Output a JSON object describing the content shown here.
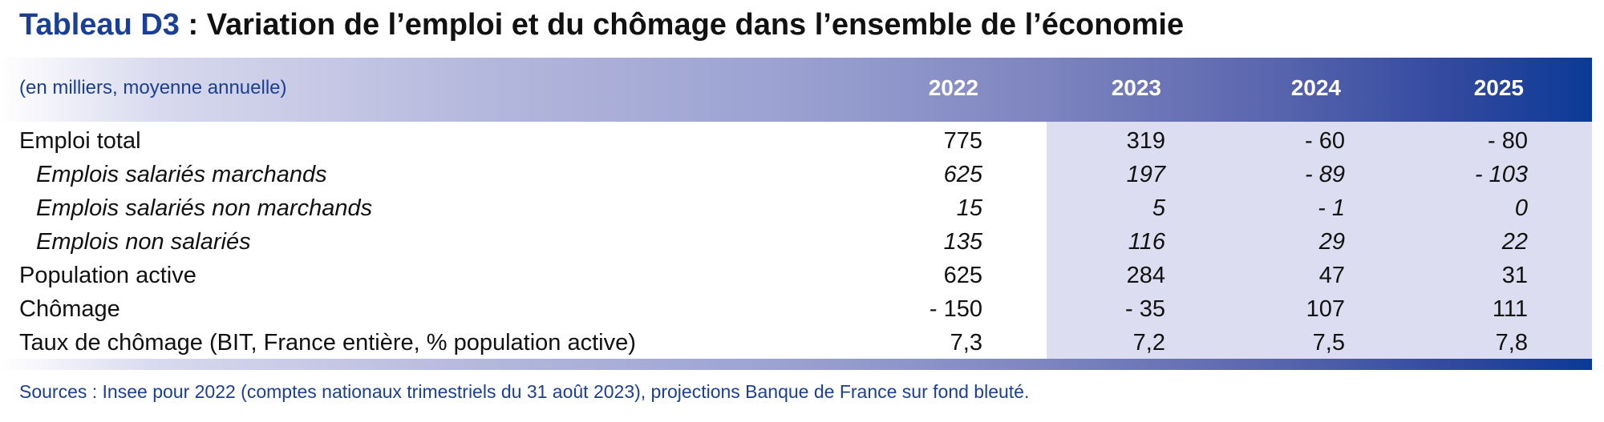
{
  "title": {
    "label": "Tableau D3",
    "text": " : Variation de l’emploi et du chômage dans l’ensemble de l’économie"
  },
  "table": {
    "units": "(en milliers, moyenne annuelle)",
    "years": [
      "2022",
      "2023",
      "2024",
      "2025"
    ],
    "rows": [
      {
        "label": "Emploi total",
        "values": [
          "775",
          "319",
          "- 60",
          "- 80"
        ],
        "style": "main"
      },
      {
        "label": "Emplois salariés marchands",
        "values": [
          "625",
          "197",
          "- 89",
          "- 103"
        ],
        "style": "sub"
      },
      {
        "label": "Emplois salariés non marchands",
        "values": [
          "15",
          "5",
          "- 1",
          "0"
        ],
        "style": "sub"
      },
      {
        "label": "Emplois non salariés",
        "values": [
          "135",
          "116",
          "29",
          "22"
        ],
        "style": "sub"
      },
      {
        "label": "Population active",
        "values": [
          "625",
          "284",
          "47",
          "31"
        ],
        "style": "main"
      },
      {
        "label": "Chômage",
        "values": [
          "- 150",
          "- 35",
          "107",
          "111"
        ],
        "style": "main"
      },
      {
        "label": "Taux de chômage (BIT, France entière, % population active)",
        "values": [
          "7,3",
          "7,2",
          "7,5",
          "7,8"
        ],
        "style": "main"
      }
    ]
  },
  "source": "Sources : Insee pour 2022 (comptes nationaux trimestriels du 31 août 2023), projections Banque de France sur fond bleuté.",
  "colors": {
    "title_label": "#1b3f94",
    "band_end": "#0a3a96",
    "forecast_background": "#dcddf0",
    "source_text": "#1b3f94"
  }
}
